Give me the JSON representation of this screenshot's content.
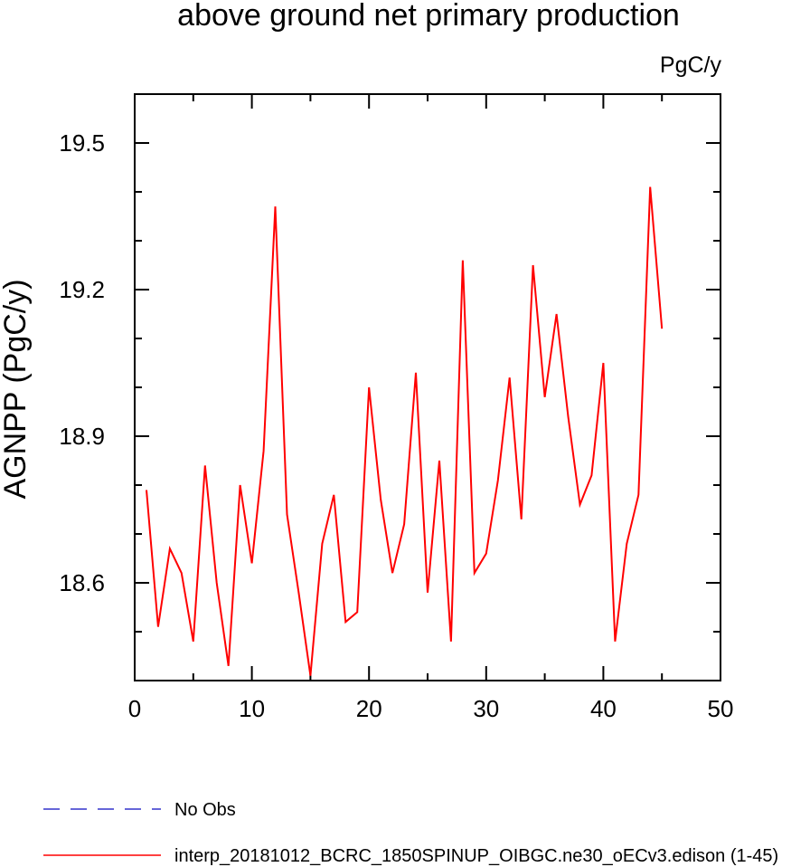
{
  "chart_data": {
    "type": "line",
    "title": "above ground net primary production",
    "units_label": "PgC/y",
    "xlabel": "",
    "ylabel": "AGNPP  (PgC/y)",
    "xlim": [
      0,
      50
    ],
    "ylim": [
      18.4,
      19.6
    ],
    "xticks": [
      0,
      10,
      20,
      30,
      40,
      50
    ],
    "xtick_labels": [
      "0",
      "10",
      "20",
      "30",
      "40",
      "50"
    ],
    "xminor_step": 5,
    "yticks": [
      18.6,
      18.9,
      19.2,
      19.5
    ],
    "ytick_labels": [
      "18.6",
      "18.9",
      "19.2",
      "19.5"
    ],
    "yminor_step": 0.1,
    "grid": false,
    "legend_position": "bottom-left, below plot",
    "series": [
      {
        "name": "interp_20181012_BCRC_1850SPINUP_OIBGC.ne30_oECv3.edison (1-45)",
        "color": "#ff0000",
        "dash": "solid",
        "x": [
          1,
          2,
          3,
          4,
          5,
          6,
          7,
          8,
          9,
          10,
          11,
          12,
          13,
          14,
          15,
          16,
          17,
          18,
          19,
          20,
          21,
          22,
          23,
          24,
          25,
          26,
          27,
          28,
          29,
          30,
          31,
          32,
          33,
          34,
          35,
          36,
          37,
          38,
          39,
          40,
          41,
          42,
          43,
          44,
          45
        ],
        "y": [
          18.79,
          18.51,
          18.67,
          18.62,
          18.48,
          18.84,
          18.6,
          18.43,
          18.8,
          18.64,
          18.87,
          19.37,
          18.74,
          18.58,
          18.41,
          18.68,
          18.78,
          18.52,
          18.54,
          19.0,
          18.77,
          18.62,
          18.72,
          19.03,
          18.58,
          18.85,
          18.48,
          19.26,
          18.62,
          18.66,
          18.81,
          19.02,
          18.73,
          19.25,
          18.98,
          19.15,
          18.94,
          18.76,
          18.82,
          19.05,
          18.48,
          18.68,
          18.78,
          19.41,
          19.12
        ]
      }
    ],
    "legend": [
      {
        "label": "No Obs",
        "color": "#3333cc",
        "dash": "dashed"
      },
      {
        "label": "interp_20181012_BCRC_1850SPINUP_OIBGC.ne30_oECv3.edison (1-45)",
        "color": "#ff0000",
        "dash": "solid"
      }
    ]
  }
}
